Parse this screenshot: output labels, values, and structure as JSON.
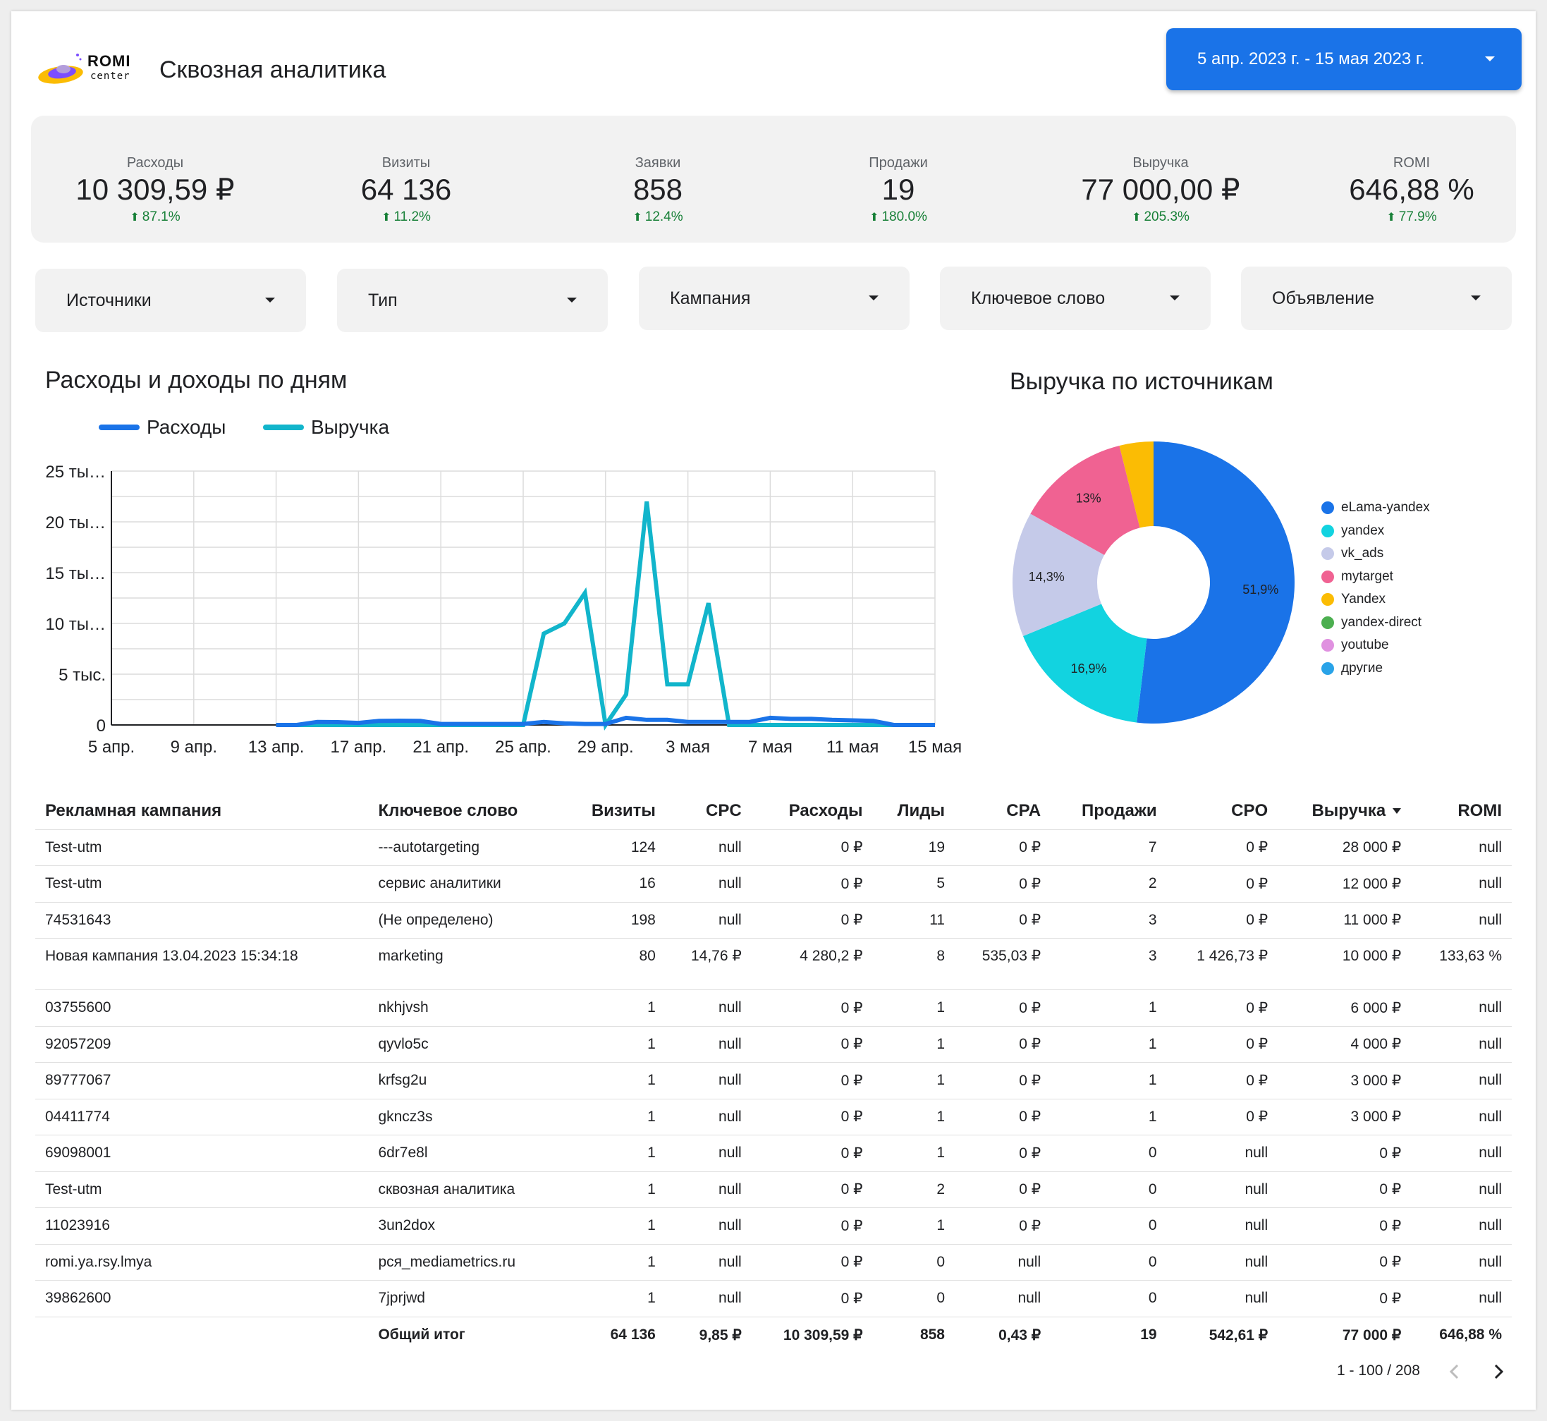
{
  "header": {
    "logo": {
      "line1": "ROMI",
      "line2": "center"
    },
    "title": "Сквозная аналитика",
    "date_range": "5 апр. 2023 г. - 15 мая 2023 г."
  },
  "kpis": [
    {
      "label": "Расходы",
      "value": "10 309,59 ₽",
      "delta": "87.1%"
    },
    {
      "label": "Визиты",
      "value": "64 136",
      "delta": "11.2%"
    },
    {
      "label": "Заявки",
      "value": "858",
      "delta": "12.4%"
    },
    {
      "label": "Продажи",
      "value": "19",
      "delta": "180.0%"
    },
    {
      "label": "Выручка",
      "value": "77 000,00 ₽",
      "delta": "205.3%"
    },
    {
      "label": "ROMI",
      "value": "646,88 %",
      "delta": "77.9%"
    }
  ],
  "filters": [
    "Источники",
    "Тип",
    "Кампания",
    "Ключевое слово",
    "Объявление"
  ],
  "line_chart_title": "Расходы и доходы по дням",
  "pie_chart_title": "Выручка по источникам",
  "colors": {
    "accent": "#1a73e8",
    "series_expenses": "#1a73e8",
    "series_revenue": "#12b5cb",
    "positive": "#188038"
  },
  "chart_data": [
    {
      "type": "line",
      "title": "Расходы и доходы по дням",
      "x_tick_labels": [
        "5 апр.",
        "9 апр.",
        "13 апр.",
        "17 апр.",
        "21 апр.",
        "25 апр.",
        "29 апр.",
        "3 мая",
        "7 мая",
        "11 мая",
        "15 мая"
      ],
      "y_tick_labels": [
        "0",
        "5 тыс.",
        "10 ты…",
        "15 ты…",
        "20 ты…",
        "25 ты…"
      ],
      "ylim": [
        0,
        25000
      ],
      "grid": true,
      "legend_position": "top-left",
      "x": [
        "2023-04-05",
        "2023-04-06",
        "2023-04-07",
        "2023-04-08",
        "2023-04-09",
        "2023-04-10",
        "2023-04-11",
        "2023-04-12",
        "2023-04-13",
        "2023-04-14",
        "2023-04-15",
        "2023-04-16",
        "2023-04-17",
        "2023-04-18",
        "2023-04-19",
        "2023-04-20",
        "2023-04-21",
        "2023-04-22",
        "2023-04-23",
        "2023-04-24",
        "2023-04-25",
        "2023-04-26",
        "2023-04-27",
        "2023-04-28",
        "2023-04-29",
        "2023-04-30",
        "2023-05-01",
        "2023-05-02",
        "2023-05-03",
        "2023-05-04",
        "2023-05-05",
        "2023-05-06",
        "2023-05-07",
        "2023-05-08",
        "2023-05-09",
        "2023-05-10",
        "2023-05-11",
        "2023-05-12",
        "2023-05-13",
        "2023-05-14",
        "2023-05-15"
      ],
      "series": [
        {
          "name": "Расходы",
          "color": "#1a73e8",
          "values": [
            null,
            null,
            null,
            null,
            null,
            null,
            null,
            null,
            0,
            0,
            300,
            280,
            200,
            400,
            420,
            400,
            100,
            100,
            100,
            100,
            100,
            300,
            150,
            100,
            100,
            700,
            500,
            500,
            300,
            300,
            300,
            300,
            700,
            600,
            600,
            500,
            450,
            400,
            0,
            0,
            0
          ]
        },
        {
          "name": "Выручка",
          "color": "#12b5cb",
          "values": [
            null,
            null,
            null,
            null,
            null,
            null,
            null,
            null,
            0,
            0,
            0,
            0,
            0,
            0,
            0,
            0,
            0,
            0,
            0,
            0,
            0,
            9000,
            10000,
            13000,
            0,
            3000,
            22000,
            4000,
            4000,
            12000,
            0,
            0,
            0,
            0,
            0,
            0,
            0,
            0,
            0,
            0,
            0
          ]
        }
      ]
    },
    {
      "type": "pie",
      "title": "Выручка по источникам",
      "donut": true,
      "legend_position": "right",
      "slices": [
        {
          "name": "eLama-yandex",
          "value": 51.9,
          "label": "51,9%",
          "color": "#1a73e8"
        },
        {
          "name": "yandex",
          "value": 16.9,
          "label": "16,9%",
          "color": "#12d3e0"
        },
        {
          "name": "vk_ads",
          "value": 14.3,
          "label": "14,3%",
          "color": "#c5cae9"
        },
        {
          "name": "mytarget",
          "value": 13.0,
          "label": "13%",
          "color": "#f06292"
        },
        {
          "name": "Yandex",
          "value": 3.9,
          "label": "",
          "color": "#fbbc04"
        },
        {
          "name": "yandex-direct",
          "value": 0,
          "label": "",
          "color": "#4caf50"
        },
        {
          "name": "youtube",
          "value": 0,
          "label": "",
          "color": "#e091e0"
        },
        {
          "name": "другие",
          "value": 0,
          "label": "",
          "color": "#29a3e8"
        }
      ]
    }
  ],
  "table": {
    "columns": [
      "Рекламная кампания",
      "Ключевое слово",
      "Визиты",
      "CPC",
      "Расходы",
      "Лиды",
      "CPA",
      "Продажи",
      "CPO",
      "Выручка",
      "ROMI"
    ],
    "rows": [
      [
        "Test-utm",
        "---autotargeting",
        "124",
        "null",
        "0 ₽",
        "19",
        "0 ₽",
        "7",
        "0 ₽",
        "28 000 ₽",
        "null"
      ],
      [
        "Test-utm",
        "сервис аналитики",
        "16",
        "null",
        "0 ₽",
        "5",
        "0 ₽",
        "2",
        "0 ₽",
        "12 000 ₽",
        "null"
      ],
      [
        "74531643",
        "(Не определено)",
        "198",
        "null",
        "0 ₽",
        "11",
        "0 ₽",
        "3",
        "0 ₽",
        "11 000 ₽",
        "null"
      ],
      [
        "Новая кампания 13.04.2023 15:34:18",
        "marketing",
        "80",
        "14,76 ₽",
        "4 280,2 ₽",
        "8",
        "535,03 ₽",
        "3",
        "1 426,73 ₽",
        "10 000 ₽",
        "133,63 %"
      ],
      [
        "03755600",
        "nkhjvsh",
        "1",
        "null",
        "0 ₽",
        "1",
        "0 ₽",
        "1",
        "0 ₽",
        "6 000 ₽",
        "null"
      ],
      [
        "92057209",
        "qyvlo5c",
        "1",
        "null",
        "0 ₽",
        "1",
        "0 ₽",
        "1",
        "0 ₽",
        "4 000 ₽",
        "null"
      ],
      [
        "89777067",
        "krfsg2u",
        "1",
        "null",
        "0 ₽",
        "1",
        "0 ₽",
        "1",
        "0 ₽",
        "3 000 ₽",
        "null"
      ],
      [
        "04411774",
        "gkncz3s",
        "1",
        "null",
        "0 ₽",
        "1",
        "0 ₽",
        "1",
        "0 ₽",
        "3 000 ₽",
        "null"
      ],
      [
        "69098001",
        "6dr7e8l",
        "1",
        "null",
        "0 ₽",
        "1",
        "0 ₽",
        "0",
        "null",
        "0 ₽",
        "null"
      ],
      [
        "Test-utm",
        "сквозная аналитика",
        "1",
        "null",
        "0 ₽",
        "2",
        "0 ₽",
        "0",
        "null",
        "0 ₽",
        "null"
      ],
      [
        "11023916",
        "3un2dox",
        "1",
        "null",
        "0 ₽",
        "1",
        "0 ₽",
        "0",
        "null",
        "0 ₽",
        "null"
      ],
      [
        "romi.ya.rsy.lmya",
        "рся_mediametrics.ru",
        "1",
        "null",
        "0 ₽",
        "0",
        "null",
        "0",
        "null",
        "0 ₽",
        "null"
      ],
      [
        "39862600",
        "7jprjwd",
        "1",
        "null",
        "0 ₽",
        "0",
        "null",
        "0",
        "null",
        "0 ₽",
        "null"
      ]
    ],
    "total": [
      "",
      "Общий итог",
      "64 136",
      "9,85 ₽",
      "10 309,59 ₽",
      "858",
      "0,43 ₽",
      "19",
      "542,61 ₽",
      "77 000 ₽",
      "646,88 %"
    ],
    "sorted_column": "Выручка",
    "pagination": "1 - 100 / 208"
  }
}
